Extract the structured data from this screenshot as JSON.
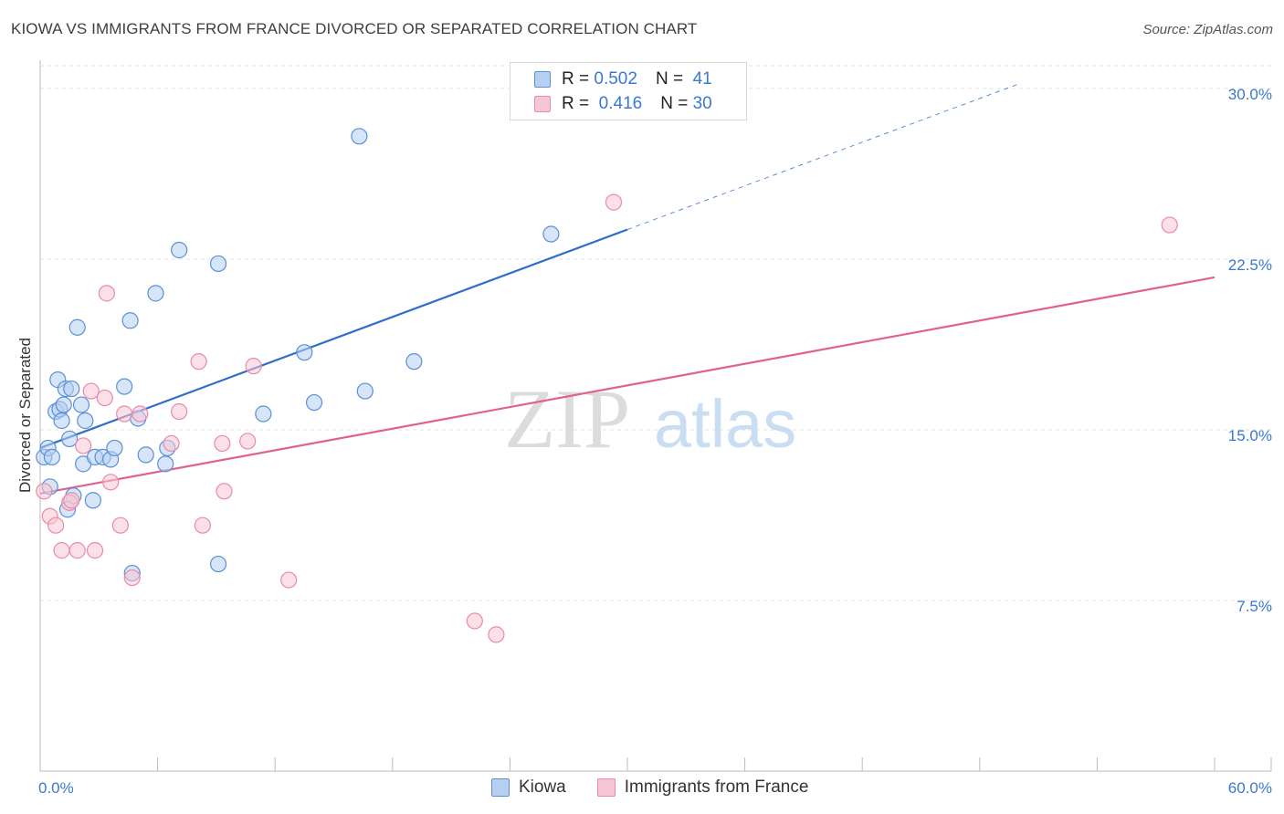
{
  "title": "KIOWA VS IMMIGRANTS FROM FRANCE DIVORCED OR SEPARATED CORRELATION CHART",
  "source": "Source: ZipAtlas.com",
  "watermark": {
    "zip": "ZIP",
    "atlas": "atlas"
  },
  "legend": {
    "rows": [
      {
        "r_label": "R =",
        "r_value": "0.502",
        "n_label": "N =",
        "n_value": "41"
      },
      {
        "r_label": "R =",
        "r_value": "0.416",
        "n_label": "N =",
        "n_value": "30"
      }
    ]
  },
  "chart_data": {
    "type": "scatter",
    "title": "KIOWA VS IMMIGRANTS FROM FRANCE DIVORCED OR SEPARATED CORRELATION CHART",
    "xlabel": "",
    "ylabel": "Divorced or Separated",
    "xlim": [
      0,
      60
    ],
    "ylim": [
      0,
      31
    ],
    "x_tick_labels": [
      "0.0%",
      "60.0%"
    ],
    "y_ticks": [
      7.5,
      15.0,
      22.5,
      30.0
    ],
    "y_tick_labels": [
      "7.5%",
      "15.0%",
      "22.5%",
      "30.0%"
    ],
    "colors": {
      "kiowa": "#5b8fd6",
      "kiowa_fill": "#b7d0f2",
      "kiowa_line": "#2f6fcc",
      "france": "#e98aa8",
      "france_fill": "#f7c6d5",
      "france_line": "#e0628c",
      "axis_text": "#3a78d2"
    },
    "series": [
      {
        "name": "Kiowa",
        "R": 0.502,
        "N": 41,
        "trend": {
          "x0": 0,
          "y0": 14.2,
          "x1": 30,
          "y1": 23.8,
          "dashed_to_x": 50,
          "dashed_to_y": 30.2
        },
        "points": [
          [
            0.2,
            13.8
          ],
          [
            0.4,
            14.2
          ],
          [
            0.5,
            12.5
          ],
          [
            0.6,
            13.8
          ],
          [
            0.8,
            15.8
          ],
          [
            0.9,
            17.2
          ],
          [
            1.0,
            15.9
          ],
          [
            1.1,
            15.4
          ],
          [
            1.2,
            16.1
          ],
          [
            1.3,
            16.8
          ],
          [
            1.5,
            14.6
          ],
          [
            1.6,
            16.8
          ],
          [
            1.7,
            12.1
          ],
          [
            1.4,
            11.5
          ],
          [
            1.9,
            19.5
          ],
          [
            2.1,
            16.1
          ],
          [
            2.2,
            13.5
          ],
          [
            2.3,
            15.4
          ],
          [
            2.7,
            11.9
          ],
          [
            2.8,
            13.8
          ],
          [
            3.2,
            13.8
          ],
          [
            3.6,
            13.7
          ],
          [
            3.8,
            14.2
          ],
          [
            4.3,
            16.9
          ],
          [
            4.7,
            8.7
          ],
          [
            4.6,
            19.8
          ],
          [
            5.0,
            15.5
          ],
          [
            5.4,
            13.9
          ],
          [
            5.9,
            21.0
          ],
          [
            6.4,
            13.5
          ],
          [
            6.5,
            14.2
          ],
          [
            7.1,
            22.9
          ],
          [
            9.1,
            9.1
          ],
          [
            9.1,
            22.3
          ],
          [
            11.4,
            15.7
          ],
          [
            13.5,
            18.4
          ],
          [
            14.0,
            16.2
          ],
          [
            16.3,
            27.9
          ],
          [
            16.6,
            16.7
          ],
          [
            19.1,
            18.0
          ],
          [
            26.1,
            23.6
          ]
        ]
      },
      {
        "name": "Immigrants from France",
        "R": 0.416,
        "N": 30,
        "trend": {
          "x0": 0,
          "y0": 12.2,
          "x1": 60,
          "y1": 21.7
        },
        "points": [
          [
            0.2,
            12.3
          ],
          [
            0.5,
            11.2
          ],
          [
            0.8,
            10.8
          ],
          [
            1.1,
            9.7
          ],
          [
            1.5,
            11.8
          ],
          [
            1.9,
            9.7
          ],
          [
            2.2,
            14.3
          ],
          [
            2.6,
            16.7
          ],
          [
            2.8,
            9.7
          ],
          [
            3.3,
            16.4
          ],
          [
            3.6,
            12.7
          ],
          [
            3.4,
            21.0
          ],
          [
            4.1,
            10.8
          ],
          [
            4.3,
            15.7
          ],
          [
            4.7,
            8.5
          ],
          [
            5.1,
            15.7
          ],
          [
            6.7,
            14.4
          ],
          [
            7.1,
            15.8
          ],
          [
            8.1,
            18.0
          ],
          [
            8.3,
            10.8
          ],
          [
            9.3,
            14.4
          ],
          [
            9.4,
            12.3
          ],
          [
            10.6,
            14.5
          ],
          [
            10.9,
            17.8
          ],
          [
            12.7,
            8.4
          ],
          [
            22.2,
            6.6
          ],
          [
            23.3,
            6.0
          ],
          [
            29.3,
            25.0
          ],
          [
            57.7,
            24.0
          ],
          [
            1.6,
            11.9
          ]
        ]
      }
    ]
  },
  "bottom_legend": [
    "Kiowa",
    "Immigrants from France"
  ]
}
